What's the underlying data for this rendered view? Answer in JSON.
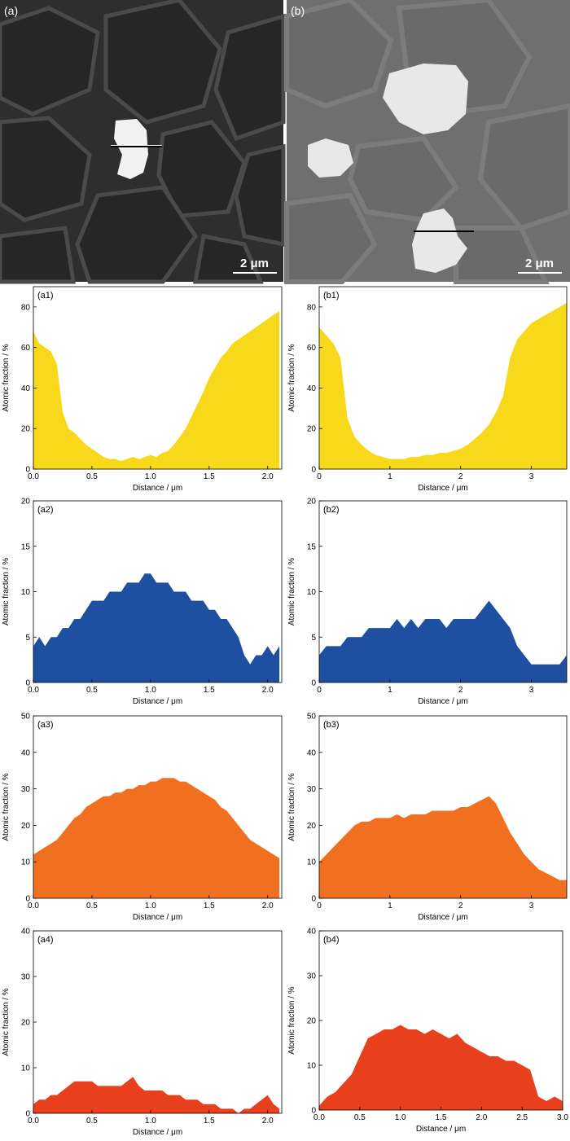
{
  "images": [
    {
      "label": "(a)",
      "scale_bar": "2 μm"
    },
    {
      "label": "(b)",
      "scale_bar": "2 μm"
    }
  ],
  "chart_data": [
    {
      "type": "area",
      "panel": "(a1)",
      "xlabel": "Distance / μm",
      "ylabel": "Atomic fraction / %",
      "xlim": [
        0,
        2.12
      ],
      "ylim": [
        0,
        90
      ],
      "xticks": [
        0,
        0.5,
        1.0,
        1.5,
        2.0
      ],
      "yticks": [
        0,
        20,
        40,
        60,
        80
      ],
      "color": "#f8d81a",
      "x": [
        0.0,
        0.05,
        0.1,
        0.15,
        0.2,
        0.25,
        0.3,
        0.35,
        0.4,
        0.45,
        0.5,
        0.55,
        0.6,
        0.65,
        0.7,
        0.75,
        0.8,
        0.85,
        0.9,
        0.95,
        1.0,
        1.05,
        1.1,
        1.15,
        1.2,
        1.25,
        1.3,
        1.35,
        1.4,
        1.45,
        1.5,
        1.55,
        1.6,
        1.65,
        1.7,
        1.75,
        1.8,
        1.85,
        1.9,
        1.95,
        2.0,
        2.05,
        2.1
      ],
      "y": [
        68,
        62,
        60,
        58,
        52,
        28,
        20,
        18,
        15,
        12,
        10,
        8,
        6,
        5,
        5,
        4,
        5,
        6,
        5,
        6,
        7,
        6,
        8,
        9,
        12,
        16,
        20,
        26,
        32,
        38,
        45,
        50,
        55,
        58,
        62,
        64,
        66,
        68,
        70,
        72,
        74,
        76,
        78
      ]
    },
    {
      "type": "area",
      "panel": "(b1)",
      "xlabel": "Distance / μm",
      "ylabel": "Atomic fraction / %",
      "xlim": [
        0,
        3.5
      ],
      "ylim": [
        0,
        90
      ],
      "xticks": [
        0,
        1,
        2,
        3
      ],
      "yticks": [
        0,
        20,
        40,
        60,
        80
      ],
      "color": "#f8d81a",
      "x": [
        0.0,
        0.1,
        0.2,
        0.3,
        0.4,
        0.5,
        0.6,
        0.7,
        0.8,
        0.9,
        1.0,
        1.1,
        1.2,
        1.3,
        1.4,
        1.5,
        1.6,
        1.7,
        1.8,
        1.9,
        2.0,
        2.1,
        2.2,
        2.3,
        2.4,
        2.5,
        2.6,
        2.7,
        2.8,
        2.9,
        3.0,
        3.1,
        3.2,
        3.3,
        3.4,
        3.5
      ],
      "y": [
        70,
        66,
        62,
        55,
        25,
        16,
        12,
        9,
        7,
        6,
        5,
        5,
        5,
        6,
        6,
        7,
        7,
        8,
        8,
        9,
        10,
        12,
        15,
        18,
        22,
        28,
        36,
        55,
        64,
        68,
        72,
        74,
        76,
        78,
        80,
        82
      ]
    },
    {
      "type": "area",
      "panel": "(a2)",
      "xlabel": "Distance / μm",
      "ylabel": "Atomic fraction / %",
      "xlim": [
        0,
        2.12
      ],
      "ylim": [
        0,
        20
      ],
      "xticks": [
        0,
        0.5,
        1.0,
        1.5,
        2.0
      ],
      "yticks": [
        0,
        5,
        10,
        15,
        20
      ],
      "color": "#1e4fa0",
      "x": [
        0.0,
        0.05,
        0.1,
        0.15,
        0.2,
        0.25,
        0.3,
        0.35,
        0.4,
        0.45,
        0.5,
        0.55,
        0.6,
        0.65,
        0.7,
        0.75,
        0.8,
        0.85,
        0.9,
        0.95,
        1.0,
        1.05,
        1.1,
        1.15,
        1.2,
        1.25,
        1.3,
        1.35,
        1.4,
        1.45,
        1.5,
        1.55,
        1.6,
        1.65,
        1.7,
        1.75,
        1.8,
        1.85,
        1.9,
        1.95,
        2.0,
        2.05,
        2.1
      ],
      "y": [
        4,
        5,
        4,
        5,
        5,
        6,
        6,
        7,
        7,
        8,
        9,
        9,
        9,
        10,
        10,
        10,
        11,
        11,
        11,
        12,
        12,
        11,
        11,
        11,
        10,
        10,
        10,
        9,
        9,
        9,
        8,
        8,
        7,
        7,
        6,
        5,
        3,
        2,
        3,
        3,
        4,
        3,
        4
      ]
    },
    {
      "type": "area",
      "panel": "(b2)",
      "xlabel": "Distance / μm",
      "ylabel": "Atomic fraction / %",
      "xlim": [
        0,
        3.5
      ],
      "ylim": [
        0,
        20
      ],
      "xticks": [
        0,
        1,
        2,
        3
      ],
      "yticks": [
        0,
        5,
        10,
        15,
        20
      ],
      "color": "#1e4fa0",
      "x": [
        0.0,
        0.1,
        0.2,
        0.3,
        0.4,
        0.5,
        0.6,
        0.7,
        0.8,
        0.9,
        1.0,
        1.1,
        1.2,
        1.3,
        1.4,
        1.5,
        1.6,
        1.7,
        1.8,
        1.9,
        2.0,
        2.1,
        2.2,
        2.3,
        2.4,
        2.5,
        2.6,
        2.7,
        2.8,
        2.9,
        3.0,
        3.1,
        3.2,
        3.3,
        3.4,
        3.5
      ],
      "y": [
        3,
        4,
        4,
        4,
        5,
        5,
        5,
        6,
        6,
        6,
        6,
        7,
        6,
        7,
        6,
        7,
        7,
        7,
        6,
        7,
        7,
        7,
        7,
        8,
        9,
        8,
        7,
        6,
        4,
        3,
        2,
        2,
        2,
        2,
        2,
        3
      ]
    },
    {
      "type": "area",
      "panel": "(a3)",
      "xlabel": "Distance / μm",
      "ylabel": "Atomic fraction / %",
      "xlim": [
        0,
        2.12
      ],
      "ylim": [
        0,
        50
      ],
      "xticks": [
        0,
        0.5,
        1.0,
        1.5,
        2.0
      ],
      "yticks": [
        0,
        10,
        20,
        30,
        40,
        50
      ],
      "color": "#f07020",
      "x": [
        0.0,
        0.05,
        0.1,
        0.15,
        0.2,
        0.25,
        0.3,
        0.35,
        0.4,
        0.45,
        0.5,
        0.55,
        0.6,
        0.65,
        0.7,
        0.75,
        0.8,
        0.85,
        0.9,
        0.95,
        1.0,
        1.05,
        1.1,
        1.15,
        1.2,
        1.25,
        1.3,
        1.35,
        1.4,
        1.45,
        1.5,
        1.55,
        1.6,
        1.65,
        1.7,
        1.75,
        1.8,
        1.85,
        1.9,
        1.95,
        2.0,
        2.05,
        2.1
      ],
      "y": [
        12,
        13,
        14,
        15,
        16,
        18,
        20,
        22,
        23,
        25,
        26,
        27,
        28,
        28,
        29,
        29,
        30,
        30,
        31,
        31,
        32,
        32,
        33,
        33,
        33,
        32,
        32,
        31,
        30,
        29,
        28,
        27,
        25,
        24,
        22,
        20,
        18,
        16,
        15,
        14,
        13,
        12,
        11
      ]
    },
    {
      "type": "area",
      "panel": "(b3)",
      "xlabel": "Distance / μm",
      "ylabel": "Atomic fraction / %",
      "xlim": [
        0,
        3.5
      ],
      "ylim": [
        0,
        50
      ],
      "xticks": [
        0,
        1,
        2,
        3
      ],
      "yticks": [
        0,
        10,
        20,
        30,
        40,
        50
      ],
      "color": "#f07020",
      "x": [
        0.0,
        0.1,
        0.2,
        0.3,
        0.4,
        0.5,
        0.6,
        0.7,
        0.8,
        0.9,
        1.0,
        1.1,
        1.2,
        1.3,
        1.4,
        1.5,
        1.6,
        1.7,
        1.8,
        1.9,
        2.0,
        2.1,
        2.2,
        2.3,
        2.4,
        2.5,
        2.6,
        2.7,
        2.8,
        2.9,
        3.0,
        3.1,
        3.2,
        3.3,
        3.4,
        3.5
      ],
      "y": [
        10,
        12,
        14,
        16,
        18,
        20,
        21,
        21,
        22,
        22,
        22,
        23,
        22,
        23,
        23,
        23,
        24,
        24,
        24,
        24,
        25,
        25,
        26,
        27,
        28,
        26,
        22,
        18,
        15,
        12,
        10,
        8,
        7,
        6,
        5,
        5
      ]
    },
    {
      "type": "area",
      "panel": "(a4)",
      "xlabel": "Distance / μm",
      "ylabel": "Atomic fraction / %",
      "xlim": [
        0,
        2.12
      ],
      "ylim": [
        0,
        40
      ],
      "xticks": [
        0,
        0.5,
        1.0,
        1.5,
        2.0
      ],
      "yticks": [
        0,
        10,
        20,
        30,
        40
      ],
      "color": "#e8401c",
      "x": [
        0.0,
        0.05,
        0.1,
        0.15,
        0.2,
        0.25,
        0.3,
        0.35,
        0.4,
        0.45,
        0.5,
        0.55,
        0.6,
        0.65,
        0.7,
        0.75,
        0.8,
        0.85,
        0.9,
        0.95,
        1.0,
        1.05,
        1.1,
        1.15,
        1.2,
        1.25,
        1.3,
        1.35,
        1.4,
        1.45,
        1.5,
        1.55,
        1.6,
        1.65,
        1.7,
        1.75,
        1.8,
        1.85,
        1.9,
        1.95,
        2.0,
        2.05,
        2.1
      ],
      "y": [
        2,
        3,
        3,
        4,
        4,
        5,
        6,
        7,
        7,
        7,
        7,
        6,
        6,
        6,
        6,
        6,
        7,
        8,
        6,
        5,
        5,
        5,
        5,
        4,
        4,
        4,
        3,
        3,
        3,
        2,
        2,
        2,
        1,
        1,
        1,
        0,
        1,
        1,
        2,
        3,
        4,
        2,
        1
      ]
    },
    {
      "type": "area",
      "panel": "(b4)",
      "xlabel": "Distance / μm",
      "ylabel": "Atomic fraction / %",
      "xlim": [
        0,
        3.0
      ],
      "ylim": [
        0,
        40
      ],
      "xticks": [
        0.0,
        0.5,
        1.0,
        1.5,
        2.0,
        2.5,
        3.0
      ],
      "yticks": [
        0,
        10,
        20,
        30,
        40
      ],
      "color": "#e8401c",
      "x": [
        0.0,
        0.1,
        0.2,
        0.3,
        0.4,
        0.5,
        0.6,
        0.7,
        0.8,
        0.9,
        1.0,
        1.1,
        1.2,
        1.3,
        1.4,
        1.5,
        1.6,
        1.7,
        1.8,
        1.9,
        2.0,
        2.1,
        2.2,
        2.3,
        2.4,
        2.5,
        2.6,
        2.7,
        2.8,
        2.9,
        3.0
      ],
      "y": [
        1,
        3,
        4,
        6,
        8,
        12,
        16,
        17,
        18,
        18,
        19,
        18,
        18,
        17,
        18,
        17,
        16,
        17,
        15,
        14,
        13,
        12,
        12,
        11,
        11,
        10,
        9,
        3,
        2,
        3,
        2
      ]
    }
  ]
}
